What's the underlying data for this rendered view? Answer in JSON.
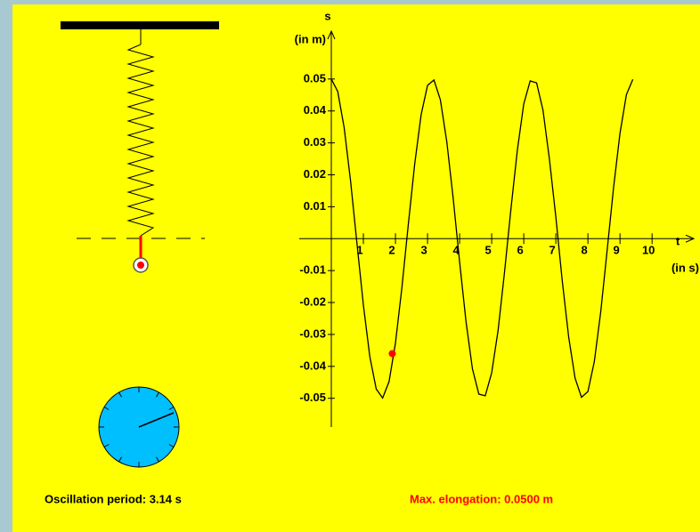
{
  "chart_data": {
    "type": "line",
    "y_label": "s",
    "y_unit": "(in m)",
    "x_label": "t",
    "x_unit": "(in s)",
    "x": [
      0,
      0.2,
      0.4,
      0.6,
      0.8,
      1.0,
      1.2,
      1.4,
      1.6,
      1.8,
      2.0,
      2.2,
      2.4,
      2.6,
      2.8,
      3.0,
      3.2,
      3.4,
      3.6,
      3.8,
      4.0,
      4.2,
      4.4,
      4.6,
      4.8,
      5.0,
      5.2,
      5.4,
      5.6,
      5.8,
      6.0,
      6.2,
      6.4,
      6.6,
      6.8,
      7.0,
      7.2,
      7.4,
      7.6,
      7.8,
      8.0,
      8.2,
      8.4,
      8.6,
      8.8,
      9.0,
      9.2,
      9.4
    ],
    "series": [
      {
        "color": "#000000",
        "values": [
          0.05,
          0.0461,
          0.0348,
          0.0181,
          -0.0015,
          -0.0208,
          -0.0369,
          -0.0471,
          -0.0499,
          -0.0448,
          -0.0327,
          -0.0154,
          0.0044,
          0.0234,
          0.0388,
          0.048,
          0.0497,
          0.0435,
          0.0304,
          0.0126,
          -0.0073,
          -0.026,
          -0.0408,
          -0.0487,
          -0.0492,
          -0.042,
          -0.0287,
          -0.0105,
          0.0093,
          0.0277,
          0.0422,
          0.0494,
          0.0488,
          0.0402,
          0.0249,
          0.0068,
          -0.0132,
          -0.0308,
          -0.0437,
          -0.0497,
          -0.0479,
          -0.0385,
          -0.0229,
          -0.0036,
          0.016,
          0.033,
          0.0451,
          0.0499
        ]
      }
    ],
    "marker": {
      "x": 1.9,
      "y": -0.036,
      "color": "#ff0000"
    },
    "xlim": [
      -1,
      11.3
    ],
    "ylim": [
      -0.059,
      0.065
    ],
    "xticks": [
      1,
      2,
      3,
      4,
      5,
      6,
      7,
      8,
      9,
      10
    ],
    "yticks": [
      -0.05,
      -0.04,
      -0.03,
      -0.02,
      -0.01,
      0.01,
      0.02,
      0.03,
      0.04,
      0.05
    ]
  },
  "labels": {
    "period": "Oscillation period:  3.14 s",
    "elongation": "Max. elongation:  0.0500 m"
  }
}
